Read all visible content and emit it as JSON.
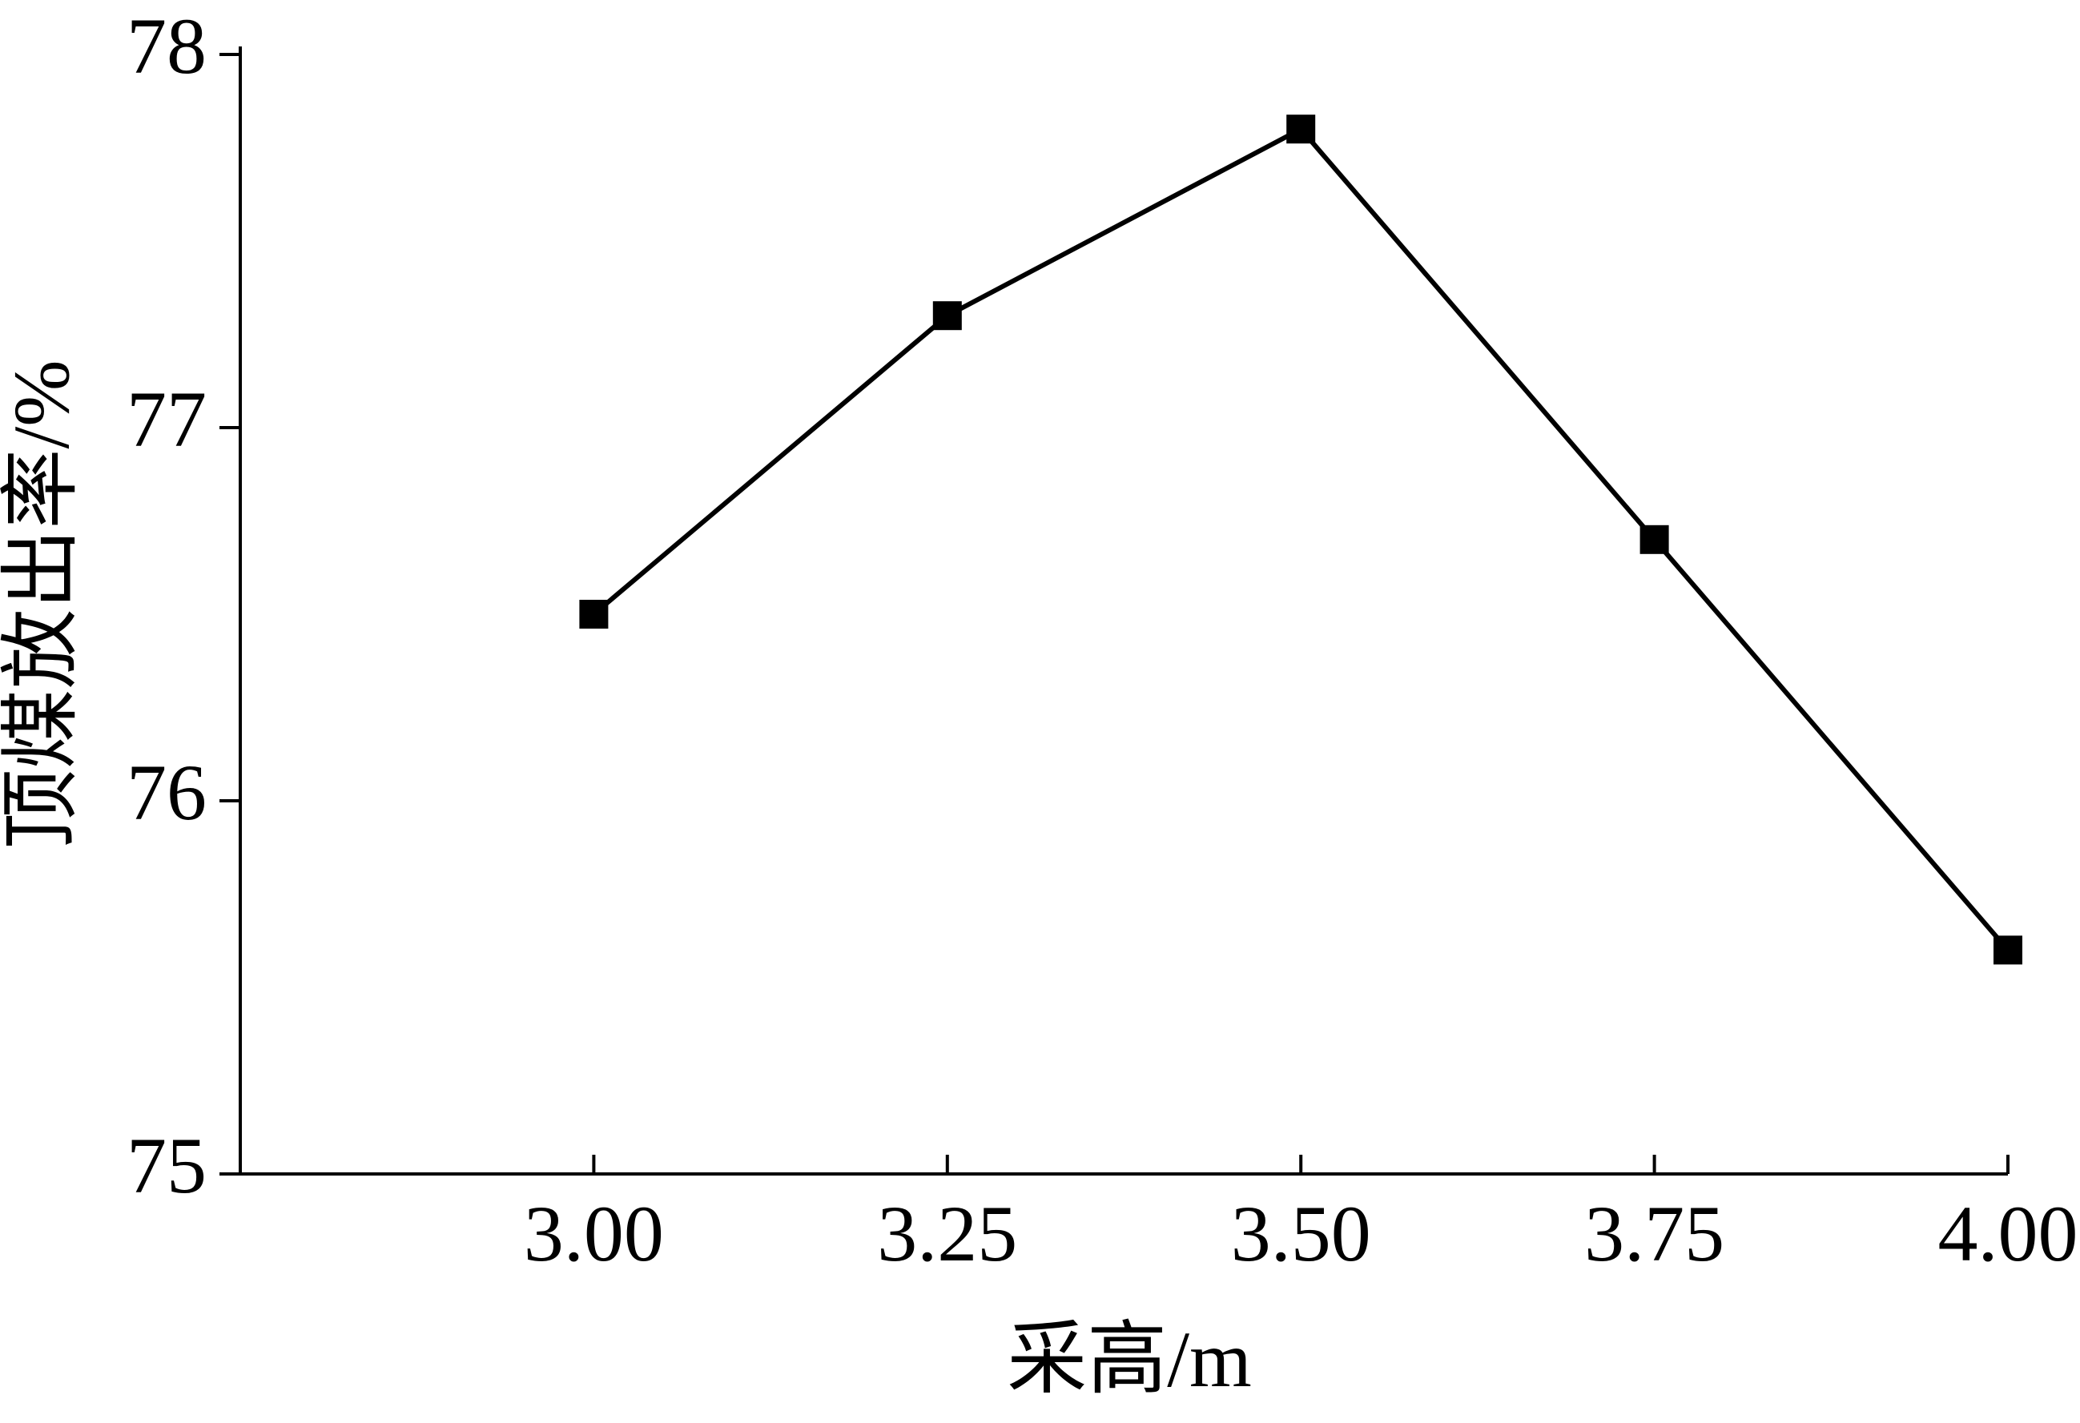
{
  "chart_data": {
    "type": "line",
    "x_label": "采高/m",
    "y_label": "顶煤放出率/%",
    "x": [
      3.0,
      3.25,
      3.5,
      3.75,
      4.0
    ],
    "series": [
      {
        "color": "#000000",
        "values": [
          76.5,
          77.3,
          77.8,
          76.7,
          75.6
        ]
      }
    ],
    "xlim": [
      2.75,
      4.0
    ],
    "xticks": [
      {
        "value": 3.0,
        "label": "3.00"
      },
      {
        "value": 3.25,
        "label": "3.25"
      },
      {
        "value": 3.5,
        "label": "3.50"
      },
      {
        "value": 3.75,
        "label": "3.75"
      },
      {
        "value": 4.0,
        "label": "4.00"
      }
    ],
    "ylim": [
      75,
      78
    ],
    "yticks": [
      75,
      76,
      77,
      78
    ],
    "grid": false
  }
}
